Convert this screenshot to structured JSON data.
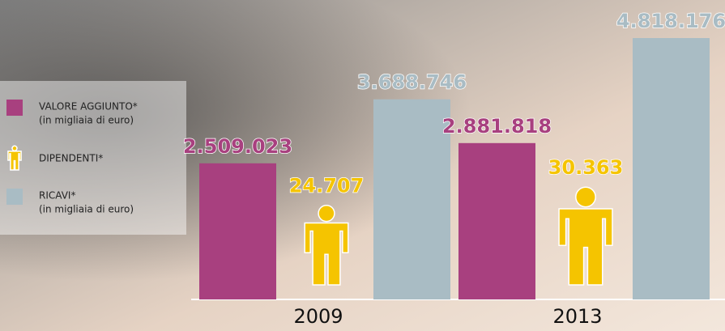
{
  "chart_data": {
    "type": "bar",
    "categories": [
      "2009",
      "2013"
    ],
    "series": [
      {
        "name": "VALORE AGGIUNTO*",
        "note": "(in migliaia di euro)",
        "color": "#a8407f",
        "marker": "bar",
        "values": [
          2509023,
          2881818
        ],
        "value_labels": [
          "2.509.023",
          "2.881.818"
        ]
      },
      {
        "name": "DIPENDENTI*",
        "color": "#f5c400",
        "marker": "person",
        "values": [
          24707,
          30363
        ],
        "value_labels": [
          "24.707",
          "30.363"
        ]
      },
      {
        "name": "RICAVI*",
        "note": "(in migliaia di euro)",
        "color": "#a9bcc4",
        "marker": "bar",
        "values": [
          3688746,
          4818176
        ],
        "value_labels": [
          "3.688.746",
          "4.818.176"
        ]
      }
    ]
  }
}
